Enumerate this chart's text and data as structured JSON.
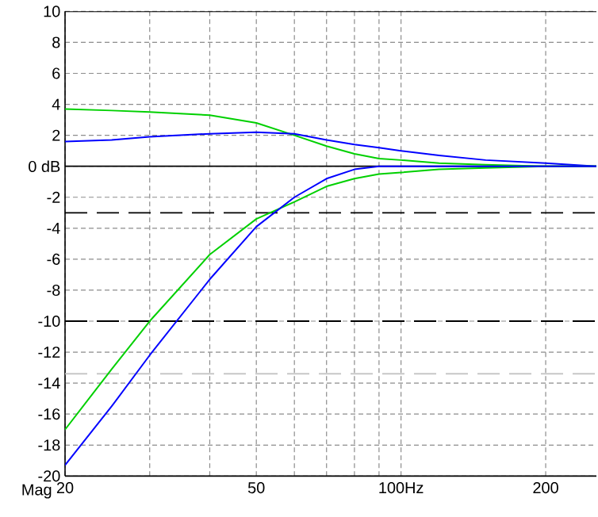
{
  "chart_data": {
    "type": "line",
    "ylabel": "Mag",
    "x": [
      20,
      25,
      30,
      40,
      50,
      60,
      70,
      80,
      90,
      100,
      120,
      150,
      200,
      255
    ],
    "series": [
      {
        "color": "#00d000",
        "values": [
          3.7,
          3.6,
          3.5,
          3.3,
          2.8,
          2.0,
          1.3,
          0.8,
          0.5,
          0.4,
          0.2,
          0.1,
          0,
          0
        ]
      },
      {
        "color": "#0000ff",
        "values": [
          1.6,
          1.7,
          1.9,
          2.1,
          2.2,
          2.1,
          1.7,
          1.4,
          1.2,
          1.0,
          0.7,
          0.4,
          0.2,
          0
        ]
      },
      {
        "color": "#00d000",
        "values": [
          -17,
          -13.1,
          -10,
          -5.7,
          -3.4,
          -2.3,
          -1.3,
          -0.8,
          -0.5,
          -0.4,
          -0.2,
          -0.1,
          0,
          0
        ]
      },
      {
        "color": "#0000ff",
        "values": [
          -19.3,
          -15.5,
          -12.2,
          -7.3,
          -3.9,
          -2.0,
          -0.8,
          -0.2,
          0,
          0,
          0,
          0,
          0,
          0
        ]
      }
    ],
    "log": "x",
    "xlim": [
      20,
      255
    ],
    "ylim": [
      -20,
      10
    ],
    "xticks": [
      20,
      {
        "value": 30,
        "label": null
      },
      {
        "value": 40,
        "label": null
      },
      50,
      {
        "value": 60,
        "label": null
      },
      {
        "value": 70,
        "label": null
      },
      {
        "value": 80,
        "label": null
      },
      {
        "value": 90,
        "label": null
      },
      {
        "value": 100,
        "label": "100Hz"
      },
      200
    ],
    "yticks": [
      -20,
      -18,
      -16,
      -14,
      -12,
      -10,
      -8,
      -6,
      -4,
      -2,
      {
        "value": 0,
        "label": "0 dB"
      },
      2,
      4,
      6,
      8,
      10
    ],
    "grid": true,
    "ref_lines": [
      {
        "axis": "y",
        "value": 0,
        "color": "#000000",
        "line_style": "solid"
      },
      {
        "axis": "y",
        "value": -3,
        "color": "#000000",
        "line_style": "dashed"
      },
      {
        "axis": "y",
        "value": -10,
        "color": "#000000",
        "line_style": "dashed"
      },
      {
        "axis": "y",
        "value": -13.4,
        "color": "#c0c0c0",
        "line_style": "dashed"
      }
    ]
  }
}
